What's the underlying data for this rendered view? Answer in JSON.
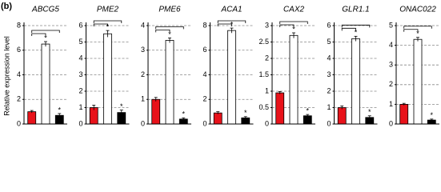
{
  "panel_label": "(b)",
  "ylabel": "Relative expression level",
  "chart_data": [
    {
      "type": "bar",
      "title": "ABCG5",
      "values": [
        1.0,
        6.5,
        0.7
      ],
      "errors": [
        0.1,
        0.2,
        0.15
      ],
      "colors": [
        "#e8121a",
        "#ffffff",
        "#000000"
      ],
      "significance": [
        null,
        "*",
        "*"
      ],
      "ylim": [
        0,
        8
      ],
      "yticks": [
        0,
        2,
        4,
        6,
        8
      ],
      "grid": true
    },
    {
      "type": "bar",
      "title": "PME2",
      "values": [
        1.0,
        5.5,
        0.7
      ],
      "errors": [
        0.15,
        0.2,
        0.15
      ],
      "colors": [
        "#e8121a",
        "#ffffff",
        "#000000"
      ],
      "significance": [
        null,
        "*",
        "*"
      ],
      "ylim": [
        0,
        6
      ],
      "yticks": [
        0,
        1,
        2,
        3,
        4,
        5,
        6
      ],
      "grid": true
    },
    {
      "type": "bar",
      "title": "PME6",
      "values": [
        1.0,
        3.4,
        0.2
      ],
      "errors": [
        0.08,
        0.1,
        0.05
      ],
      "colors": [
        "#e8121a",
        "#ffffff",
        "#000000"
      ],
      "significance": [
        null,
        "*",
        "*"
      ],
      "ylim": [
        0,
        4
      ],
      "yticks": [
        0,
        1,
        2,
        3,
        4
      ],
      "grid": true
    },
    {
      "type": "bar",
      "title": "ACA1",
      "values": [
        0.9,
        7.6,
        0.5
      ],
      "errors": [
        0.1,
        0.2,
        0.1
      ],
      "colors": [
        "#e8121a",
        "#ffffff",
        "#000000"
      ],
      "significance": [
        null,
        "*",
        "*"
      ],
      "ylim": [
        0,
        8
      ],
      "yticks": [
        0,
        2,
        4,
        6,
        8
      ],
      "grid": true
    },
    {
      "type": "bar",
      "title": "CAX2",
      "values": [
        0.95,
        2.7,
        0.25
      ],
      "errors": [
        0.04,
        0.08,
        0.04
      ],
      "colors": [
        "#e8121a",
        "#ffffff",
        "#000000"
      ],
      "significance": [
        null,
        "*",
        "*"
      ],
      "ylim": [
        0,
        3
      ],
      "yticks": [
        0,
        0.5,
        1,
        1.5,
        2,
        2.5,
        3
      ],
      "grid": true
    },
    {
      "type": "bar",
      "title": "GLR1.1",
      "values": [
        1.0,
        5.2,
        0.4
      ],
      "errors": [
        0.1,
        0.15,
        0.1
      ],
      "colors": [
        "#e8121a",
        "#ffffff",
        "#000000"
      ],
      "significance": [
        null,
        "*",
        "*"
      ],
      "ylim": [
        0,
        6
      ],
      "yticks": [
        0,
        1,
        2,
        3,
        4,
        5,
        6
      ],
      "grid": true
    },
    {
      "type": "bar",
      "title": "ONAC022",
      "values": [
        1.0,
        4.3,
        0.2
      ],
      "errors": [
        0.05,
        0.1,
        0.05
      ],
      "colors": [
        "#e8121a",
        "#ffffff",
        "#000000"
      ],
      "significance": [
        null,
        "*",
        "*"
      ],
      "ylim": [
        0,
        5
      ],
      "yticks": [
        0,
        1,
        2,
        3,
        4,
        5
      ],
      "grid": true
    }
  ]
}
